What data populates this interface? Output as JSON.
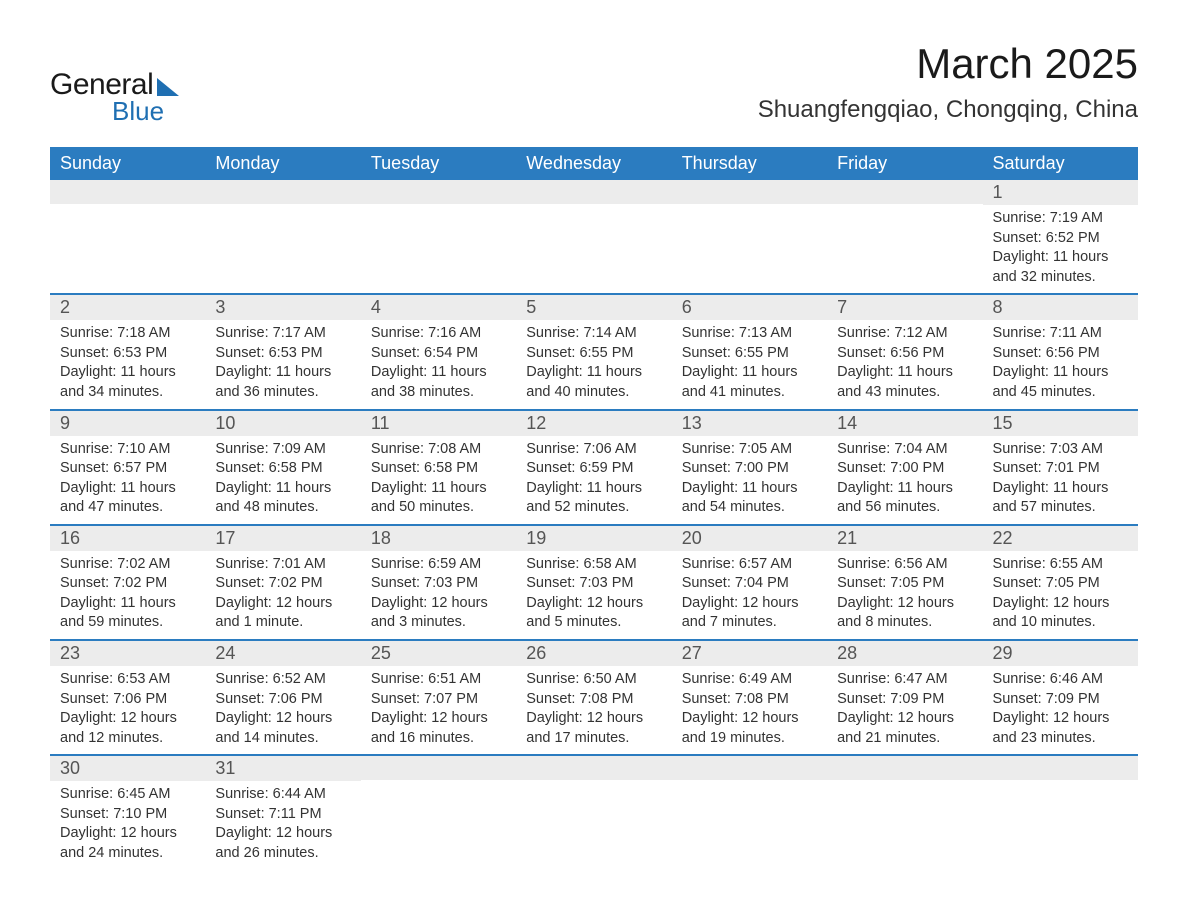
{
  "logo": {
    "text1": "General",
    "text2": "Blue"
  },
  "title": "March 2025",
  "location": "Shuangfengqiao, Chongqing, China",
  "styling": {
    "header_bg": "#2b7cc0",
    "header_fg": "#ffffff",
    "daynum_bg": "#ececec",
    "border_color": "#2b7cc0",
    "text_color": "#333333",
    "page_bg": "#ffffff",
    "logo_accent": "#1f6fb2",
    "title_fontsize": 42,
    "location_fontsize": 24,
    "header_fontsize": 18,
    "daynum_fontsize": 18,
    "body_fontsize": 14.5
  },
  "weekdays": [
    "Sunday",
    "Monday",
    "Tuesday",
    "Wednesday",
    "Thursday",
    "Friday",
    "Saturday"
  ],
  "weeks": [
    [
      null,
      null,
      null,
      null,
      null,
      null,
      {
        "n": "1",
        "sr": "Sunrise: 7:19 AM",
        "ss": "Sunset: 6:52 PM",
        "dl": "Daylight: 11 hours and 32 minutes."
      }
    ],
    [
      {
        "n": "2",
        "sr": "Sunrise: 7:18 AM",
        "ss": "Sunset: 6:53 PM",
        "dl": "Daylight: 11 hours and 34 minutes."
      },
      {
        "n": "3",
        "sr": "Sunrise: 7:17 AM",
        "ss": "Sunset: 6:53 PM",
        "dl": "Daylight: 11 hours and 36 minutes."
      },
      {
        "n": "4",
        "sr": "Sunrise: 7:16 AM",
        "ss": "Sunset: 6:54 PM",
        "dl": "Daylight: 11 hours and 38 minutes."
      },
      {
        "n": "5",
        "sr": "Sunrise: 7:14 AM",
        "ss": "Sunset: 6:55 PM",
        "dl": "Daylight: 11 hours and 40 minutes."
      },
      {
        "n": "6",
        "sr": "Sunrise: 7:13 AM",
        "ss": "Sunset: 6:55 PM",
        "dl": "Daylight: 11 hours and 41 minutes."
      },
      {
        "n": "7",
        "sr": "Sunrise: 7:12 AM",
        "ss": "Sunset: 6:56 PM",
        "dl": "Daylight: 11 hours and 43 minutes."
      },
      {
        "n": "8",
        "sr": "Sunrise: 7:11 AM",
        "ss": "Sunset: 6:56 PM",
        "dl": "Daylight: 11 hours and 45 minutes."
      }
    ],
    [
      {
        "n": "9",
        "sr": "Sunrise: 7:10 AM",
        "ss": "Sunset: 6:57 PM",
        "dl": "Daylight: 11 hours and 47 minutes."
      },
      {
        "n": "10",
        "sr": "Sunrise: 7:09 AM",
        "ss": "Sunset: 6:58 PM",
        "dl": "Daylight: 11 hours and 48 minutes."
      },
      {
        "n": "11",
        "sr": "Sunrise: 7:08 AM",
        "ss": "Sunset: 6:58 PM",
        "dl": "Daylight: 11 hours and 50 minutes."
      },
      {
        "n": "12",
        "sr": "Sunrise: 7:06 AM",
        "ss": "Sunset: 6:59 PM",
        "dl": "Daylight: 11 hours and 52 minutes."
      },
      {
        "n": "13",
        "sr": "Sunrise: 7:05 AM",
        "ss": "Sunset: 7:00 PM",
        "dl": "Daylight: 11 hours and 54 minutes."
      },
      {
        "n": "14",
        "sr": "Sunrise: 7:04 AM",
        "ss": "Sunset: 7:00 PM",
        "dl": "Daylight: 11 hours and 56 minutes."
      },
      {
        "n": "15",
        "sr": "Sunrise: 7:03 AM",
        "ss": "Sunset: 7:01 PM",
        "dl": "Daylight: 11 hours and 57 minutes."
      }
    ],
    [
      {
        "n": "16",
        "sr": "Sunrise: 7:02 AM",
        "ss": "Sunset: 7:02 PM",
        "dl": "Daylight: 11 hours and 59 minutes."
      },
      {
        "n": "17",
        "sr": "Sunrise: 7:01 AM",
        "ss": "Sunset: 7:02 PM",
        "dl": "Daylight: 12 hours and 1 minute."
      },
      {
        "n": "18",
        "sr": "Sunrise: 6:59 AM",
        "ss": "Sunset: 7:03 PM",
        "dl": "Daylight: 12 hours and 3 minutes."
      },
      {
        "n": "19",
        "sr": "Sunrise: 6:58 AM",
        "ss": "Sunset: 7:03 PM",
        "dl": "Daylight: 12 hours and 5 minutes."
      },
      {
        "n": "20",
        "sr": "Sunrise: 6:57 AM",
        "ss": "Sunset: 7:04 PM",
        "dl": "Daylight: 12 hours and 7 minutes."
      },
      {
        "n": "21",
        "sr": "Sunrise: 6:56 AM",
        "ss": "Sunset: 7:05 PM",
        "dl": "Daylight: 12 hours and 8 minutes."
      },
      {
        "n": "22",
        "sr": "Sunrise: 6:55 AM",
        "ss": "Sunset: 7:05 PM",
        "dl": "Daylight: 12 hours and 10 minutes."
      }
    ],
    [
      {
        "n": "23",
        "sr": "Sunrise: 6:53 AM",
        "ss": "Sunset: 7:06 PM",
        "dl": "Daylight: 12 hours and 12 minutes."
      },
      {
        "n": "24",
        "sr": "Sunrise: 6:52 AM",
        "ss": "Sunset: 7:06 PM",
        "dl": "Daylight: 12 hours and 14 minutes."
      },
      {
        "n": "25",
        "sr": "Sunrise: 6:51 AM",
        "ss": "Sunset: 7:07 PM",
        "dl": "Daylight: 12 hours and 16 minutes."
      },
      {
        "n": "26",
        "sr": "Sunrise: 6:50 AM",
        "ss": "Sunset: 7:08 PM",
        "dl": "Daylight: 12 hours and 17 minutes."
      },
      {
        "n": "27",
        "sr": "Sunrise: 6:49 AM",
        "ss": "Sunset: 7:08 PM",
        "dl": "Daylight: 12 hours and 19 minutes."
      },
      {
        "n": "28",
        "sr": "Sunrise: 6:47 AM",
        "ss": "Sunset: 7:09 PM",
        "dl": "Daylight: 12 hours and 21 minutes."
      },
      {
        "n": "29",
        "sr": "Sunrise: 6:46 AM",
        "ss": "Sunset: 7:09 PM",
        "dl": "Daylight: 12 hours and 23 minutes."
      }
    ],
    [
      {
        "n": "30",
        "sr": "Sunrise: 6:45 AM",
        "ss": "Sunset: 7:10 PM",
        "dl": "Daylight: 12 hours and 24 minutes."
      },
      {
        "n": "31",
        "sr": "Sunrise: 6:44 AM",
        "ss": "Sunset: 7:11 PM",
        "dl": "Daylight: 12 hours and 26 minutes."
      },
      null,
      null,
      null,
      null,
      null
    ]
  ]
}
